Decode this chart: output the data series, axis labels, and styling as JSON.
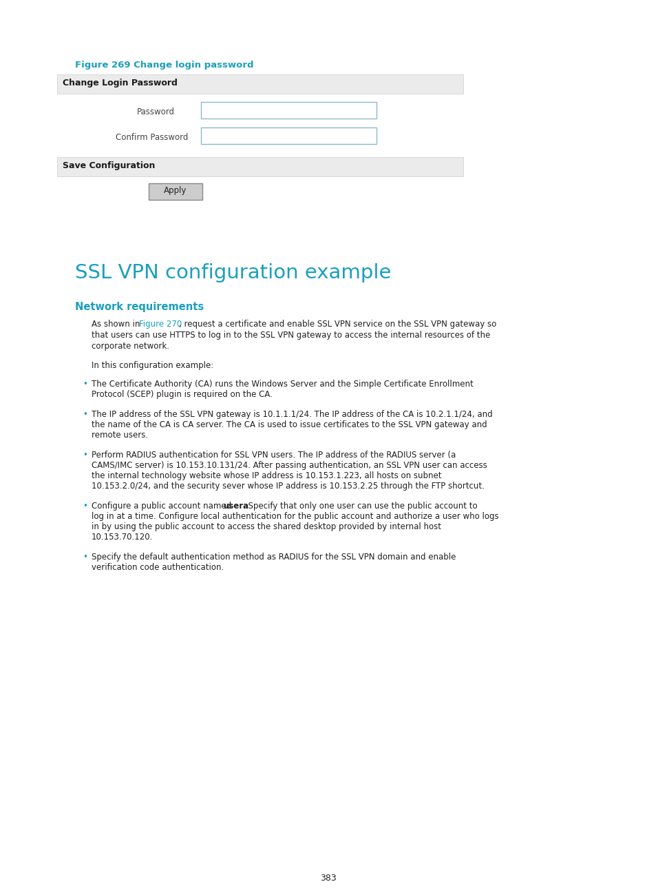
{
  "background_color": "#ffffff",
  "page_number": "383",
  "figure_caption": "Figure 269 Change login password",
  "figure_caption_color": "#1a9fbe",
  "form_header1": "Change Login Password",
  "form_header1_bg": "#ebebeb",
  "form_field1_label": "Password",
  "form_field2_label": "Confirm Password",
  "form_header2": "Save Configuration",
  "form_header2_bg": "#ebebeb",
  "button_label": "Apply",
  "section_title": "SSL VPN configuration example",
  "section_title_color": "#1a9fbe",
  "subsection_title": "Network requirements",
  "subsection_title_color": "#1a9fbe",
  "intro_line1": "As shown in ",
  "intro_link": "Figure 270",
  "intro_line1_post": ", request a certificate and enable SSL VPN service on the SSL VPN gateway so",
  "intro_line2": "that users can use HTTPS to log in to the SSL VPN gateway to access the internal resources of the",
  "intro_line3": "corporate network.",
  "intro_text2": "In this configuration example:",
  "bullet1_line1": "The Certificate Authority (CA) runs the Windows Server and the Simple Certificate Enrollment",
  "bullet1_line2": "Protocol (SCEP) plugin is required on the CA.",
  "bullet2_line1": "The IP address of the SSL VPN gateway is 10.1.1.1/24. The IP address of the CA is 10.2.1.1/24, and",
  "bullet2_line2": "the name of the CA is CA server. The CA is used to issue certificates to the SSL VPN gateway and",
  "bullet2_line3": "remote users.",
  "bullet3_line1": "Perform RADIUS authentication for SSL VPN users. The IP address of the RADIUS server (a",
  "bullet3_line2": "CAMS/IMC server) is 10.153.10.131/24. After passing authentication, an SSL VPN user can access",
  "bullet3_line3": "the internal technology website whose IP address is 10.153.1.223, all hosts on subnet",
  "bullet3_line4": "10.153.2.0/24, and the security sever whose IP address is 10.153.2.25 through the FTP shortcut.",
  "bullet4_pre": "Configure a public account named ",
  "bullet4_bold": "usera",
  "bullet4_post": ". Specify that only one user can use the public account to",
  "bullet4_line2": "log in at a time. Configure local authentication for the public account and authorize a user who logs",
  "bullet4_line3": "in by using the public account to access the shared desktop provided by internal host",
  "bullet4_line4": "10.153.70.120.",
  "bullet5_line1": "Specify the default authentication method as RADIUS for the SSL VPN domain and enable",
  "bullet5_line2": "verification code authentication.",
  "link_color": "#1a9fbe",
  "text_color": "#231f20",
  "bullet_color": "#1a9fbe"
}
